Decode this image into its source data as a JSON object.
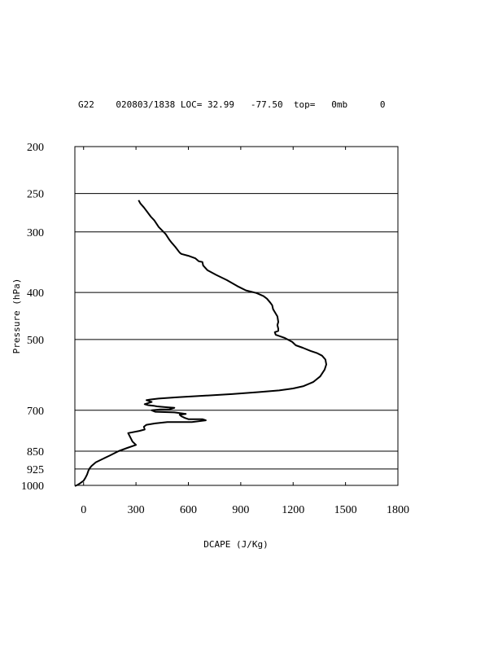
{
  "header": {
    "line": "G22    020803/1838 LOC= 32.99   -77.50  top=   0mb      0"
  },
  "chart_data": {
    "type": "line",
    "xlabel": "DCAPE (J/Kg)",
    "ylabel": "Pressure (hPa)",
    "xlim": [
      -50,
      1800
    ],
    "ylim": [
      1000,
      200
    ],
    "y_scale": "log",
    "x_ticks": [
      0,
      300,
      600,
      900,
      1200,
      1500,
      1800
    ],
    "x_tick_labels": [
      "0",
      "300",
      "600",
      "900",
      "1200",
      "1500",
      "1800"
    ],
    "y_ticks": [
      200,
      250,
      300,
      400,
      500,
      700,
      850,
      925,
      1000
    ],
    "y_tick_labels": [
      "200",
      "250",
      "300",
      "400",
      "500",
      "700",
      "850",
      "925",
      "1000"
    ],
    "gridlines": [
      250,
      300,
      400,
      500,
      700,
      850,
      925
    ],
    "series": [
      {
        "x": [
          315,
          325,
          345,
          365,
          385,
          405,
          430,
          470,
          490,
          505,
          525,
          550,
          560,
          600,
          640,
          660,
          680,
          685,
          710,
          760,
          820,
          880,
          930,
          990,
          1030,
          1050,
          1070,
          1080,
          1085,
          1100,
          1110,
          1115,
          1110,
          1115,
          1115,
          1095,
          1100,
          1150,
          1195,
          1215,
          1255,
          1300,
          1335,
          1365,
          1385,
          1390,
          1380,
          1355,
          1315,
          1260,
          1200,
          1120,
          1000,
          850,
          700,
          540,
          430,
          380,
          360,
          390,
          350,
          370,
          400,
          420,
          480,
          520,
          490,
          440,
          390,
          410,
          520,
          560,
          585,
          550,
          560,
          580,
          600,
          680,
          700,
          620,
          480,
          410,
          360,
          345,
          350,
          320,
          255,
          280,
          300,
          250,
          200,
          150,
          110,
          70,
          45,
          35,
          28,
          20,
          10,
          0,
          -20,
          -35,
          -50
        ],
        "y": [
          258,
          262,
          267,
          273,
          279,
          284,
          293,
          303,
          311,
          316,
          322,
          331,
          333,
          336,
          340,
          345,
          346,
          352,
          360,
          368,
          377,
          388,
          396,
          401,
          407,
          412,
          420,
          425,
          433,
          442,
          448,
          460,
          467,
          475,
          480,
          483,
          489,
          496,
          506,
          514,
          520,
          528,
          533,
          540,
          550,
          563,
          577,
          596,
          612,
          624,
          631,
          637,
          642,
          648,
          653,
          658,
          662,
          665,
          667,
          673,
          680,
          683,
          685,
          687,
          690,
          692,
          697,
          697,
          700,
          705,
          707,
          710,
          712,
          715,
          720,
          726,
          730,
          730,
          734,
          740,
          740,
          745,
          750,
          757,
          767,
          772,
          780,
          812,
          825,
          837,
          850,
          868,
          882,
          896,
          912,
          922,
          932,
          950,
          965,
          978,
          990,
          998,
          1003
        ]
      }
    ]
  }
}
